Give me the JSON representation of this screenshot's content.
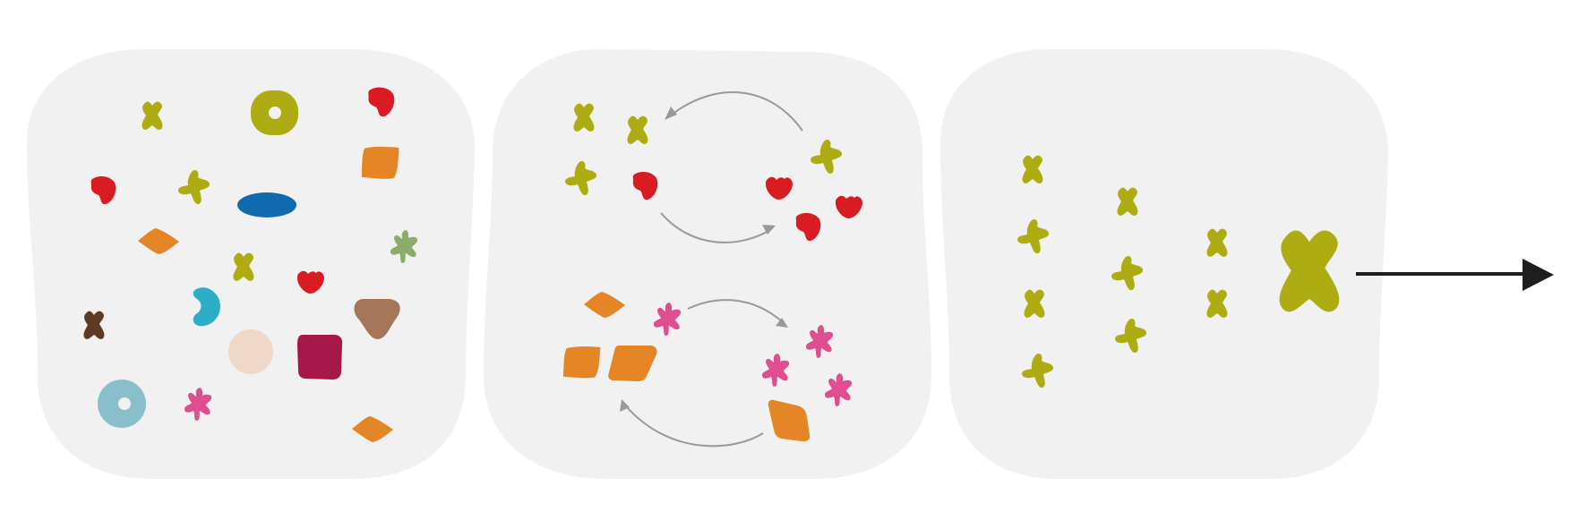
{
  "colors": {
    "panel": "#f1f1f1",
    "olive": "#aeac13",
    "red": "#d91b22",
    "orange": "#e48625",
    "blue": "#126aae",
    "teal": "#2cadc8",
    "sage": "#8cad6a",
    "brown": "#5d3a21",
    "tan": "#a5775a",
    "peach": "#efd8c8",
    "crimson": "#a6174a",
    "light_blue": "#89bfca",
    "pink": "#de4e90",
    "arrow_gray": "#999999",
    "arrow_black": "#1e1e1e"
  },
  "panels": [
    {
      "name": "mixed-shapes-panel",
      "description_items": [
        "olive-cross",
        "olive-ring",
        "red-blob",
        "orange-diamond",
        "blue-oval",
        "teal-bean",
        "sage-star",
        "brown-cross",
        "tan-diamond",
        "peach-circle",
        "crimson-square",
        "light-blue-ring",
        "pink-star"
      ]
    },
    {
      "name": "sorting-cycles-panel",
      "description_items": [
        "olive-red-cycle",
        "orange-pink-cycle"
      ]
    },
    {
      "name": "olive-group-panel",
      "description_items": [
        "olive-cross-column",
        "large-olive-cross"
      ]
    }
  ],
  "output_arrow": {
    "direction": "right",
    "icon": "arrow-right-icon"
  }
}
